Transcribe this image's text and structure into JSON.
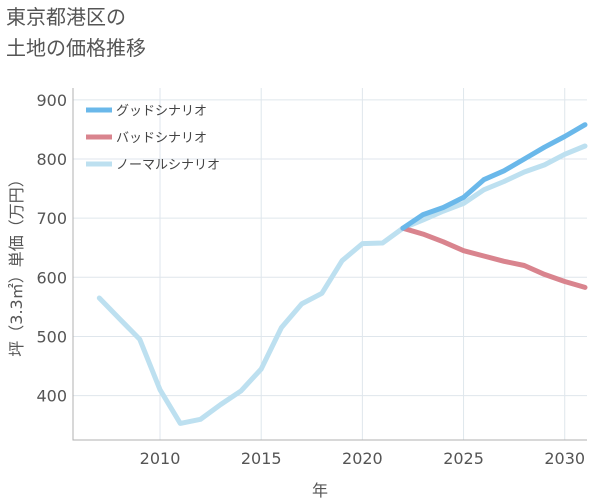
{
  "chart_data": {
    "type": "line",
    "title_lines": [
      "東京都港区の",
      "土地の価格推移"
    ],
    "xlabel": "年",
    "ylabel": "坪（3.3㎡）単価（万円）",
    "xlim": [
      2005.7,
      2031.1
    ],
    "ylim": [
      325,
      920
    ],
    "x_ticks": [
      2010,
      2015,
      2020,
      2025,
      2030
    ],
    "y_ticks": [
      400,
      500,
      600,
      700,
      800,
      900
    ],
    "grid": true,
    "legend_position": "top-left",
    "series": [
      {
        "name": "グッドシナリオ",
        "color": "#6ab8ea",
        "x": [
          2022,
          2023,
          2024,
          2025,
          2026,
          2027,
          2028,
          2029,
          2030,
          2031
        ],
        "y": [
          683,
          706,
          718,
          735,
          765,
          780,
          800,
          820,
          838,
          858
        ]
      },
      {
        "name": "バッドシナリオ",
        "color": "#d9848e",
        "x": [
          2022,
          2023,
          2024,
          2025,
          2026,
          2027,
          2028,
          2029,
          2030,
          2031
        ],
        "y": [
          683,
          673,
          660,
          645,
          636,
          627,
          620,
          605,
          593,
          583
        ]
      },
      {
        "name": "ノーマルシナリオ",
        "color": "#bde0f0",
        "x": [
          2007,
          2008,
          2009,
          2010,
          2011,
          2012,
          2013,
          2014,
          2015,
          2016,
          2017,
          2018,
          2019,
          2020,
          2021,
          2022,
          2023,
          2024,
          2025,
          2026,
          2027,
          2028,
          2029,
          2030,
          2031
        ],
        "y": [
          565,
          530,
          495,
          410,
          353,
          360,
          385,
          408,
          445,
          515,
          555,
          573,
          628,
          657,
          658,
          683,
          697,
          712,
          725,
          748,
          762,
          778,
          790,
          808,
          822
        ]
      }
    ]
  }
}
